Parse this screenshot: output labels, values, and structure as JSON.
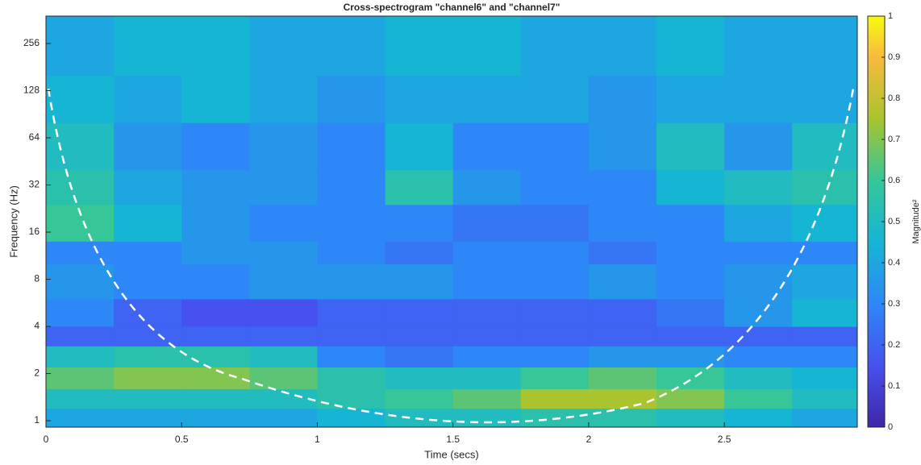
{
  "chart_data": {
    "type": "heatmap",
    "title": "Cross-spectrogram \"channel6\" and \"channel7\"",
    "x_label": "Time (secs)",
    "y_label": "Frequency (Hz)",
    "colorbar_label": "Magnitude²",
    "xlim": [
      0,
      2.99
    ],
    "xticks": [
      0,
      0.5,
      1,
      1.5,
      2,
      2.5
    ],
    "ylim": [
      0.91,
      383
    ],
    "yticks": [
      1,
      2,
      4,
      8,
      16,
      32,
      64,
      128,
      256
    ],
    "y_log2": true,
    "clim": [
      0,
      1
    ],
    "cticks": [
      0,
      0.1,
      0.2,
      0.3,
      0.4,
      0.5,
      0.6,
      0.7,
      0.8,
      0.9,
      1
    ],
    "x_bins": [
      0,
      0.25,
      0.5,
      0.75,
      1,
      1.25,
      1.5,
      1.75,
      2,
      2.25,
      2.5,
      2.75,
      2.99
    ],
    "y_bins": [
      0.91,
      1.2,
      1.6,
      2.2,
      3,
      4,
      6,
      10,
      14,
      24,
      40,
      80,
      160,
      383
    ],
    "z": [
      [
        0.4,
        0.4,
        0.4,
        0.4,
        0.45,
        0.5,
        0.5,
        0.55,
        0.55,
        0.5,
        0.45,
        0.4
      ],
      [
        0.5,
        0.5,
        0.5,
        0.5,
        0.55,
        0.6,
        0.65,
        0.75,
        0.75,
        0.7,
        0.6,
        0.5
      ],
      [
        0.65,
        0.7,
        0.7,
        0.65,
        0.55,
        0.5,
        0.5,
        0.6,
        0.65,
        0.6,
        0.5,
        0.45
      ],
      [
        0.5,
        0.55,
        0.55,
        0.5,
        0.3,
        0.25,
        0.3,
        0.3,
        0.35,
        0.35,
        0.3,
        0.3
      ],
      [
        0.2,
        0.2,
        0.2,
        0.2,
        0.2,
        0.2,
        0.2,
        0.2,
        0.2,
        0.2,
        0.2,
        0.2
      ],
      [
        0.3,
        0.2,
        0.15,
        0.15,
        0.2,
        0.2,
        0.2,
        0.2,
        0.2,
        0.25,
        0.35,
        0.45
      ],
      [
        0.35,
        0.3,
        0.3,
        0.35,
        0.35,
        0.35,
        0.3,
        0.3,
        0.35,
        0.3,
        0.35,
        0.4
      ],
      [
        0.3,
        0.3,
        0.35,
        0.35,
        0.3,
        0.25,
        0.3,
        0.3,
        0.25,
        0.3,
        0.3,
        0.3
      ],
      [
        0.6,
        0.45,
        0.35,
        0.3,
        0.3,
        0.3,
        0.25,
        0.25,
        0.3,
        0.3,
        0.4,
        0.45
      ],
      [
        0.55,
        0.4,
        0.35,
        0.35,
        0.3,
        0.55,
        0.35,
        0.3,
        0.3,
        0.45,
        0.5,
        0.55
      ],
      [
        0.5,
        0.35,
        0.3,
        0.35,
        0.3,
        0.45,
        0.3,
        0.3,
        0.35,
        0.5,
        0.35,
        0.5
      ],
      [
        0.45,
        0.4,
        0.45,
        0.4,
        0.35,
        0.4,
        0.4,
        0.4,
        0.35,
        0.4,
        0.4,
        0.4
      ],
      [
        0.4,
        0.45,
        0.45,
        0.4,
        0.4,
        0.45,
        0.45,
        0.4,
        0.4,
        0.45,
        0.4,
        0.4
      ]
    ]
  }
}
